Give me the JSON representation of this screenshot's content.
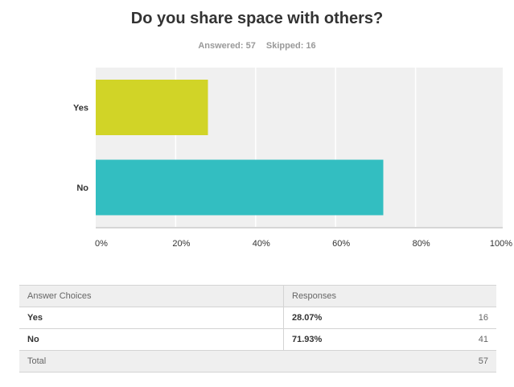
{
  "chart_data": {
    "type": "bar",
    "orientation": "horizontal",
    "title": "Do you share space with others?",
    "categories": [
      "Yes",
      "No"
    ],
    "values": [
      28.07,
      71.93
    ],
    "colors": [
      "#d1d427",
      "#33bec1"
    ],
    "xlim": [
      0,
      100
    ],
    "xticks": [
      "0%",
      "20%",
      "40%",
      "60%",
      "80%",
      "100%"
    ],
    "grid": true
  },
  "summary": {
    "answered": "Answered: 57",
    "skipped": "Skipped: 16"
  },
  "table": {
    "headers": [
      "Answer Choices",
      "Responses"
    ],
    "rows": [
      {
        "choice": "Yes",
        "percent": "28.07%",
        "count": "16"
      },
      {
        "choice": "No",
        "percent": "71.93%",
        "count": "41"
      }
    ],
    "total_label": "Total",
    "total": "57"
  }
}
